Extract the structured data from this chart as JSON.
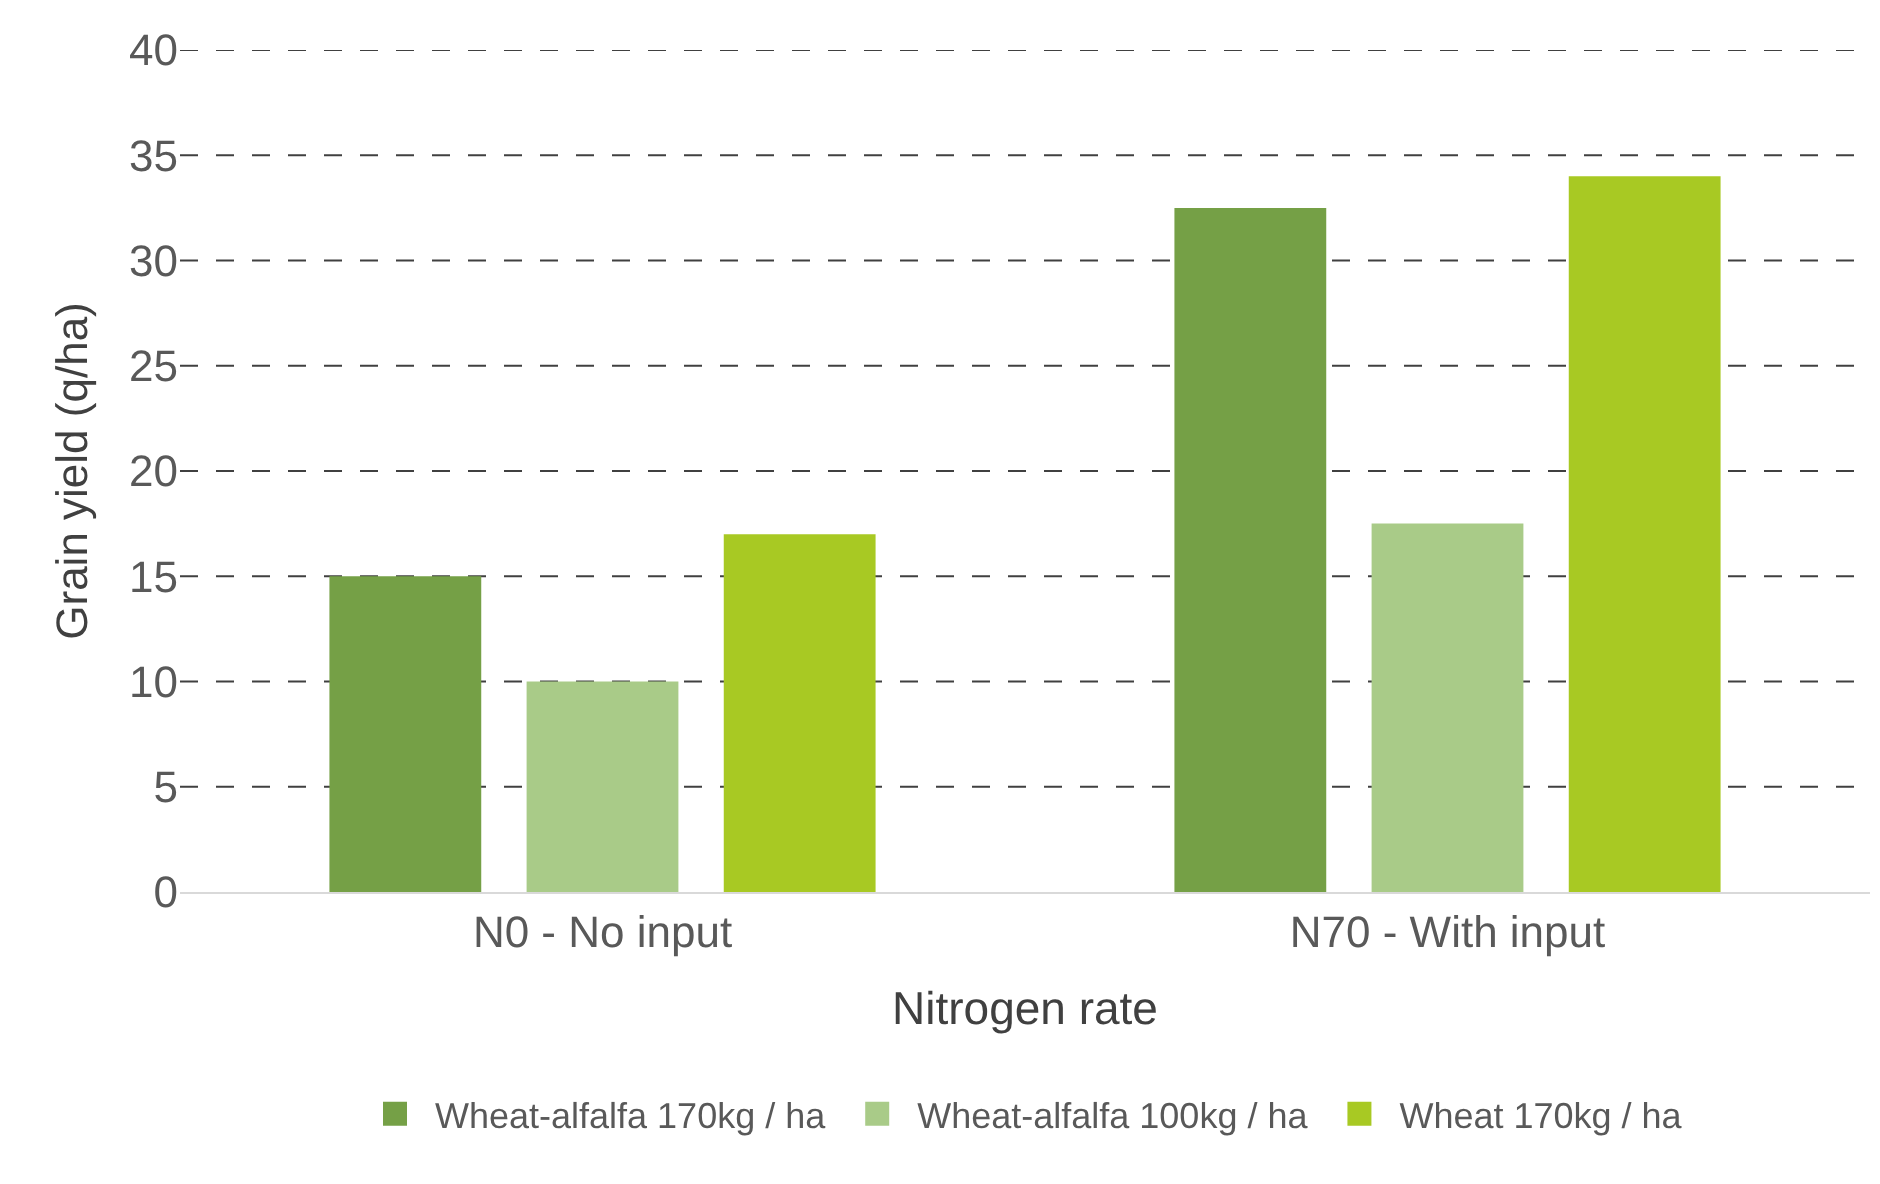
{
  "chart_data": {
    "type": "bar",
    "xlabel": "Nitrogen rate",
    "ylabel": "Grain yield (q/ha)",
    "categories": [
      "N0 - No input",
      "N70 - With input"
    ],
    "series": [
      {
        "name": "Wheat-alfalfa 170kg / ha",
        "color": "#75a046",
        "values": [
          15,
          32.5
        ]
      },
      {
        "name": "Wheat-alfalfa 100kg / ha",
        "color": "#a9cb88",
        "values": [
          10,
          17.5
        ]
      },
      {
        "name": "Wheat 170kg / ha",
        "color": "#a8c923",
        "values": [
          17,
          34
        ]
      }
    ],
    "ylim": [
      0,
      40
    ],
    "yticks": [
      0,
      5,
      10,
      15,
      20,
      25,
      30,
      35,
      40
    ],
    "grid": "y",
    "legend": "bottom"
  }
}
